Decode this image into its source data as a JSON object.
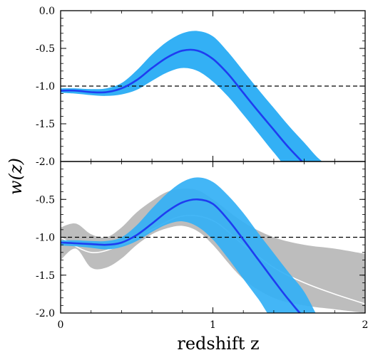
{
  "chart_data": [
    {
      "type": "area",
      "panel": "top",
      "xlim": [
        0,
        2
      ],
      "ylim": [
        -2.0,
        0.0
      ],
      "yticks": [
        0.0,
        -0.5,
        -1.0,
        -1.5,
        -2.0
      ],
      "ytick_labels": [
        "0.0",
        "-0.5",
        "-1.0",
        "-1.5",
        "-2.0"
      ],
      "reference_line": -1.0,
      "colors": {
        "band": "#33b0f5",
        "line": "#1f3df0",
        "reference": "#000000"
      },
      "series": [
        {
          "x": [
            0.0,
            0.1,
            0.2,
            0.3,
            0.4,
            0.5,
            0.6,
            0.7,
            0.8,
            0.9,
            1.0,
            1.1,
            1.2,
            1.3,
            1.4,
            1.5,
            1.6
          ],
          "y": [
            -1.06,
            -1.06,
            -1.08,
            -1.08,
            -1.03,
            -0.92,
            -0.76,
            -0.62,
            -0.53,
            -0.53,
            -0.64,
            -0.84,
            -1.09,
            -1.34,
            -1.58,
            -1.82,
            -2.03
          ]
        },
        {
          "x": [
            0.0,
            0.1,
            0.2,
            0.3,
            0.4,
            0.5,
            0.6,
            0.7,
            0.8,
            0.9,
            1.0,
            1.1,
            1.2,
            1.3,
            1.4,
            1.5,
            1.6,
            1.7,
            1.8,
            1.9
          ],
          "lower": [
            -1.09,
            -1.1,
            -1.12,
            -1.13,
            -1.11,
            -1.05,
            -0.93,
            -0.82,
            -0.76,
            -0.8,
            -0.94,
            -1.14,
            -1.38,
            -1.63,
            -1.88,
            -2.1,
            -2.1,
            -2.1,
            -2.1,
            -2.1
          ],
          "upper": [
            -1.03,
            -1.03,
            -1.04,
            -1.03,
            -0.96,
            -0.79,
            -0.58,
            -0.41,
            -0.3,
            -0.27,
            -0.34,
            -0.55,
            -0.8,
            -1.05,
            -1.29,
            -1.53,
            -1.75,
            -1.97,
            -2.1,
            -2.1
          ]
        }
      ]
    },
    {
      "type": "area",
      "panel": "bottom",
      "xlim": [
        0,
        2
      ],
      "ylim": [
        -2.0,
        0.0
      ],
      "xticks": [
        0,
        1,
        2
      ],
      "xtick_labels": [
        "0",
        "1",
        "2"
      ],
      "yticks": [
        -0.5,
        -1.0,
        -1.5,
        -2.0
      ],
      "ytick_labels": [
        "-0.5",
        "-1.0",
        "-1.5",
        "-2.0"
      ],
      "reference_line": -1.0,
      "colors": {
        "grey_band": "#bdbdbd",
        "grey_line": "#ffffff",
        "band": "#33b0f5",
        "line": "#1f3df0",
        "reference": "#000000"
      },
      "series": [
        {
          "x": [
            0.0,
            0.1,
            0.2,
            0.3,
            0.4,
            0.5,
            0.6,
            0.7,
            0.8,
            0.9,
            1.0,
            1.2,
            1.4,
            1.6,
            1.8,
            2.0
          ],
          "lower": [
            -1.3,
            -1.15,
            -1.4,
            -1.4,
            -1.28,
            -1.1,
            -0.96,
            -0.88,
            -0.85,
            -0.92,
            -1.1,
            -1.55,
            -1.8,
            -1.9,
            -1.95,
            -2.0
          ],
          "upper": [
            -0.87,
            -0.82,
            -0.96,
            -1.0,
            -0.87,
            -0.67,
            -0.52,
            -0.4,
            -0.36,
            -0.38,
            -0.5,
            -0.8,
            -1.0,
            -1.1,
            -1.15,
            -1.22
          ]
        },
        {
          "x": [
            0.0,
            0.2,
            0.4,
            0.6,
            0.8,
            1.0,
            1.2,
            1.4,
            1.6,
            1.8,
            2.0
          ],
          "y": [
            -1.0,
            -1.2,
            -1.1,
            -0.9,
            -0.72,
            -0.78,
            -1.1,
            -1.4,
            -1.6,
            -1.75,
            -1.88
          ]
        },
        {
          "x": [
            0.0,
            0.1,
            0.2,
            0.3,
            0.4,
            0.5,
            0.6,
            0.7,
            0.8,
            0.9,
            1.0,
            1.1,
            1.2,
            1.3,
            1.4,
            1.5,
            1.6,
            1.7
          ],
          "lower": [
            -1.11,
            -1.12,
            -1.14,
            -1.16,
            -1.13,
            -1.05,
            -0.93,
            -0.83,
            -0.79,
            -0.86,
            -1.03,
            -1.28,
            -1.55,
            -1.82,
            -2.1,
            -2.1,
            -2.1,
            -2.1
          ],
          "upper": [
            -1.04,
            -1.04,
            -1.05,
            -1.05,
            -1.0,
            -0.84,
            -0.62,
            -0.42,
            -0.27,
            -0.21,
            -0.27,
            -0.45,
            -0.68,
            -0.95,
            -1.21,
            -1.47,
            -1.72,
            -2.1
          ]
        },
        {
          "x": [
            0.0,
            0.1,
            0.2,
            0.3,
            0.4,
            0.5,
            0.6,
            0.7,
            0.8,
            0.9,
            1.0,
            1.1,
            1.2,
            1.3,
            1.4,
            1.5,
            1.6,
            1.7
          ],
          "y": [
            -1.07,
            -1.08,
            -1.09,
            -1.1,
            -1.07,
            -0.97,
            -0.82,
            -0.66,
            -0.54,
            -0.5,
            -0.56,
            -0.77,
            -1.03,
            -1.3,
            -1.57,
            -1.83,
            -2.05,
            -2.1
          ]
        }
      ]
    }
  ],
  "ylabel": "w(z)",
  "xlabel": "redshift z"
}
